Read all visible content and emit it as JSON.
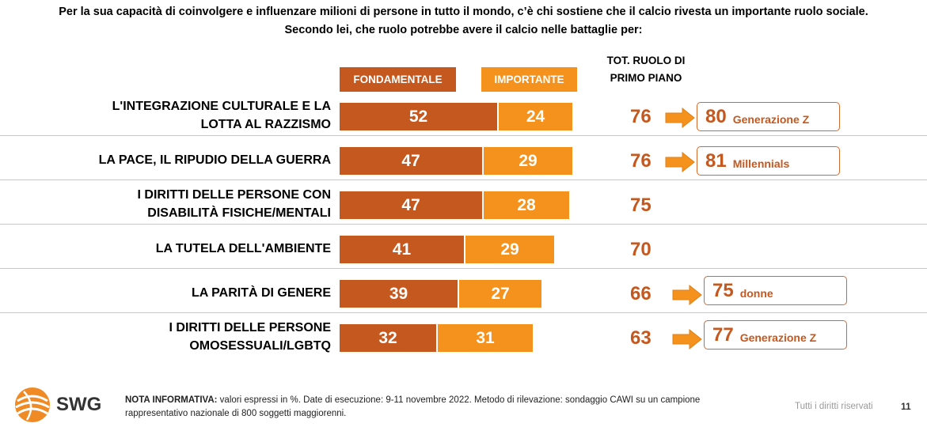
{
  "header": {
    "line1": "Per la sua capacità di coinvolgere e influenzare milioni di persone in tutto il mondo, c’è chi sostiene che il calcio rivesta un importante ruolo sociale.",
    "line2": "Secondo lei, che ruolo potrebbe avere il calcio nelle battaglie per:"
  },
  "colors": {
    "fondamentale": "#c5581e",
    "importante": "#f5921e",
    "total_text": "#c5581e"
  },
  "chart_data": {
    "type": "bar",
    "orientation": "horizontal",
    "stacked": true,
    "title": "",
    "legend": [
      "FONDAMENTALE",
      "IMPORTANTE"
    ],
    "total_header": "TOT. RUOLO DI PRIMO PIANO",
    "categories": [
      "L'INTEGRAZIONE CULTURALE E LA LOTTA AL RAZZISMO",
      "LA PACE, IL RIPUDIO DELLA GUERRA",
      "I DIRITTI DELLE PERSONE CON DISABILITÀ FISICHE/MENTALI",
      "LA TUTELA DELL'AMBIENTE",
      "LA PARITÀ DI GENERE",
      "I DIRITTI DELLE PERSONE OMOSESSUALI/LGBTQ"
    ],
    "series": [
      {
        "name": "FONDAMENTALE",
        "values": [
          52,
          47,
          47,
          41,
          39,
          32
        ]
      },
      {
        "name": "IMPORTANTE",
        "values": [
          24,
          29,
          28,
          29,
          27,
          31
        ]
      }
    ],
    "totals": [
      76,
      76,
      75,
      70,
      66,
      63
    ],
    "callouts": [
      {
        "value": "80",
        "label": "Generazione Z"
      },
      {
        "value": "81",
        "label": "Millennials"
      },
      null,
      null,
      {
        "value": "75",
        "label": "donne"
      },
      {
        "value": "77",
        "label": "Generazione Z"
      }
    ]
  },
  "rows": [
    {
      "label_lines": [
        "L'INTEGRAZIONE CULTURALE E LA",
        "LOTTA AL RAZZISMO"
      ]
    },
    {
      "label_lines": [
        "LA PACE, IL RIPUDIO DELLA GUERRA"
      ]
    },
    {
      "label_lines": [
        "I DIRITTI DELLE PERSONE CON",
        "DISABILITÀ FISICHE/MENTALI"
      ]
    },
    {
      "label_lines": [
        "LA TUTELA DELL'AMBIENTE"
      ]
    },
    {
      "label_lines": [
        "LA PARITÀ DI GENERE"
      ]
    },
    {
      "label_lines": [
        "I DIRITTI DELLE PERSONE",
        "OMOSESSUALI/LGBTQ"
      ]
    }
  ],
  "legend": {
    "fondamentale": "FONDAMENTALE",
    "importante": "IMPORTANTE"
  },
  "total_header": {
    "line1": "TOT. RUOLO DI",
    "line2": "PRIMO PIANO"
  },
  "footer": {
    "brand": "SWG",
    "note_bold": "NOTA INFORMATIVA:",
    "note_text": " valori espressi in %. Date di esecuzione: 9-11 novembre 2022. Metodo di rilevazione: sondaggio CAWI su un campione rappresentativo nazionale di 800 soggetti maggiorenni.",
    "rights": "Tutti i diritti riservati",
    "page_number": "11"
  }
}
